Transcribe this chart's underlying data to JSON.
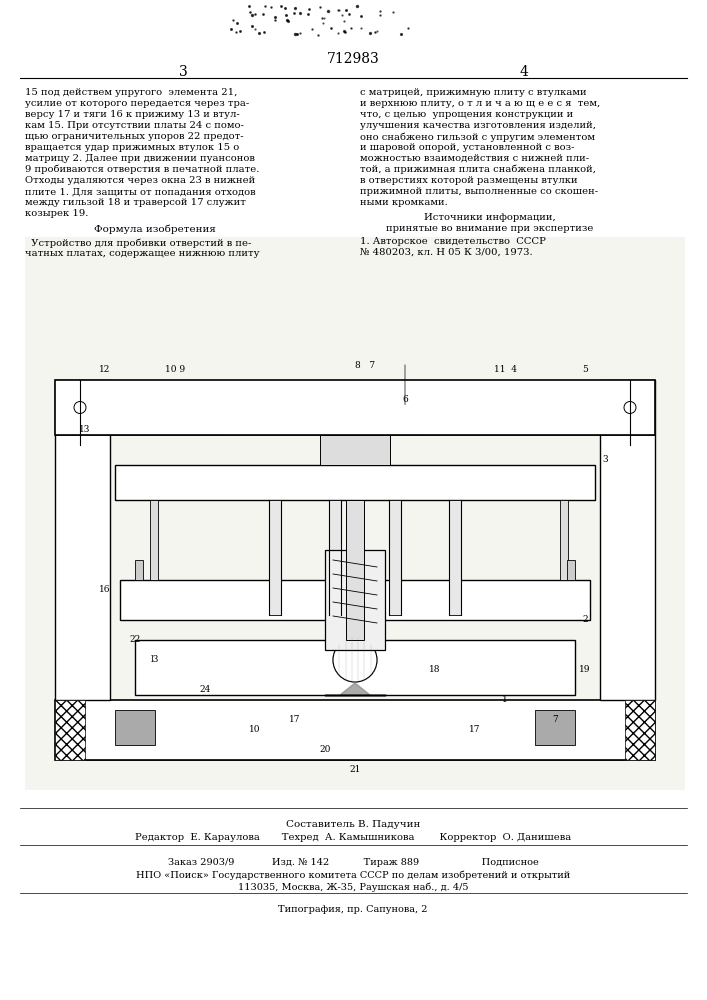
{
  "page_number_left": "3",
  "page_number_right": "4",
  "patent_number": "712983",
  "bg_color": "#ffffff",
  "text_color": "#000000",
  "figsize": [
    7.07,
    10.0
  ],
  "dpi": 100,
  "col1_text": "15 под действем упругого  элемента 21,\nусилие от которого передается через тра-\nверсу 17 и тяги 16 к прижиму 13 и втул-\nкам 15. При отсутствии платы 24 с помо-\nщью ограничительных упоров 22 предот-\nвращается удар прижимных втулок 15 о\nматрицу 2. Далее при движении пуансонов\n9 пробиваются отверстия в печатной плате.\nОтходы удаляются через окна 23 в нижней\nплите 1. Для защиты от попадания отходов\nмежду гильзой 18 и траверсой 17 служит\nкозырек 19.",
  "formula_header": "Формула изобретения",
  "col1_formula_text": "  Устройство для пробивки отверстий в пе-\nчатных платах, содержащее нижнюю плиту",
  "col2_text": "с матрицей, прижимную плиту с втулками\nи верхнюю плиту, о т л и ч а ю щ е е с я  тем,\nчто, с целью  упрощения конструкции и\nулучшения качества изготовления изделий,\nоно снабжено гильзой с упругим элементом\nи шаровой опорой, установленной с воз-\nможностью взаимодействия с нижней пли-\nтой, а прижимная плита снабжена планкой,\nв отверстиях которой размещены втулки\nприжимной плиты, выполненные со скошен-\nными кромками.",
  "sources_header": "Источники информации,",
  "sources_text": "принятые во внимание при экспертизе",
  "sources_ref": "1. Авторское  свидетельство  СССР\n№ 480203, кл. Н 05 К 3/00, 1973.",
  "composer_line": "Составитель В. Падучин",
  "editor_line": "Редактор  Е. Карауловa       Техред  А. Камышникова        Корректор  О. Данишева",
  "order_line": "Заказ 2903/9            Изд. № 142           Тираж 889                    Подписное",
  "npo_line": "НПО «Поиск» Государственного комитета СССР по делам изобретений и открытий",
  "address_line": "113035, Москва, Ж-35, Раушская наб., д. 4/5",
  "typography_line": "Типография, пр. Сапунова, 2"
}
